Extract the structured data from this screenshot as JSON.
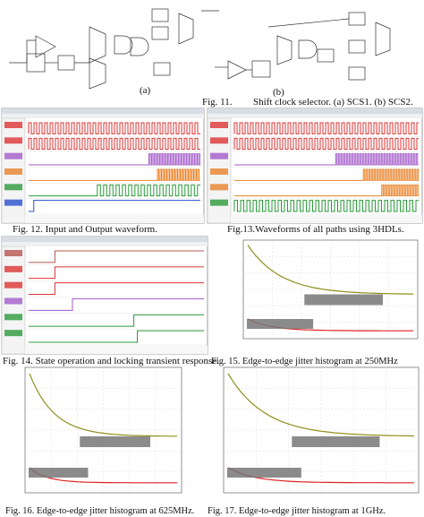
{
  "figures": [
    {
      "label_a": "(a)",
      "label_b": "(b)",
      "number": "Fig. 11.",
      "caption": "Shift clock selector. (a) SCS1. (b) SCS2."
    },
    {
      "caption": "Fig. 12. Input and Output waveform."
    },
    {
      "caption": "Fig.13.Waveforms of all paths using 3HDLs."
    },
    {
      "caption": "Fig. 14. State operation and locking transient response."
    },
    {
      "caption": "Fig. 15. Edge-to-edge jitter histogram at 250MHz"
    },
    {
      "caption": "Fig. 16. Edge-to-edge jitter histogram at 625MHz."
    },
    {
      "caption": "Fig. 17. Edge-to-edge jitter histogram at 1GHz."
    }
  ]
}
